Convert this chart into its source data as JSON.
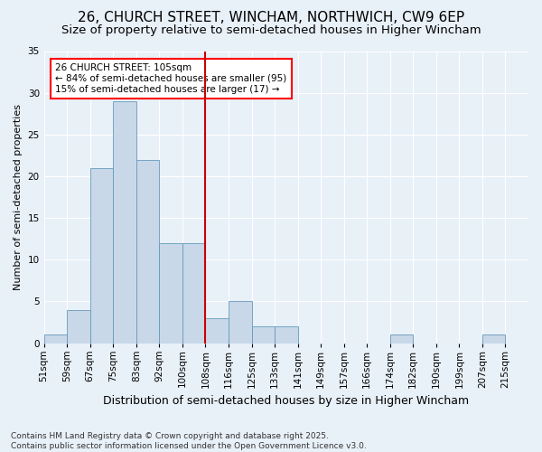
{
  "title1": "26, CHURCH STREET, WINCHAM, NORTHWICH, CW9 6EP",
  "title2": "Size of property relative to semi-detached houses in Higher Wincham",
  "xlabel": "Distribution of semi-detached houses by size in Higher Wincham",
  "ylabel": "Number of semi-detached properties",
  "footnote": "Contains HM Land Registry data © Crown copyright and database right 2025.\nContains public sector information licensed under the Open Government Licence v3.0.",
  "bin_labels": [
    "51sqm",
    "59sqm",
    "67sqm",
    "75sqm",
    "83sqm",
    "92sqm",
    "100sqm",
    "108sqm",
    "116sqm",
    "125sqm",
    "133sqm",
    "141sqm",
    "149sqm",
    "157sqm",
    "166sqm",
    "174sqm",
    "182sqm",
    "190sqm",
    "199sqm",
    "207sqm",
    "215sqm"
  ],
  "counts": [
    1,
    4,
    21,
    29,
    22,
    12,
    12,
    3,
    5,
    2,
    2,
    0,
    0,
    0,
    0,
    1,
    0,
    0,
    0,
    1,
    0
  ],
  "bar_color": "#c8d8e8",
  "bar_edgecolor": "#6699bb",
  "vline_color": "#cc0000",
  "vline_bin": 7,
  "ylim": [
    0,
    35
  ],
  "yticks": [
    0,
    5,
    10,
    15,
    20,
    25,
    30,
    35
  ],
  "annotation_text": "26 CHURCH STREET: 105sqm\n← 84% of semi-detached houses are smaller (95)\n15% of semi-detached houses are larger (17) →",
  "bg_color": "#e8f0f8",
  "plot_bg_color": "#e8f0f8",
  "grid_color": "#ffffff",
  "title1_fontsize": 11,
  "title2_fontsize": 9.5,
  "xlabel_fontsize": 9,
  "ylabel_fontsize": 8,
  "tick_fontsize": 7.5,
  "footnote_fontsize": 6.5,
  "annot_fontsize": 7.5
}
